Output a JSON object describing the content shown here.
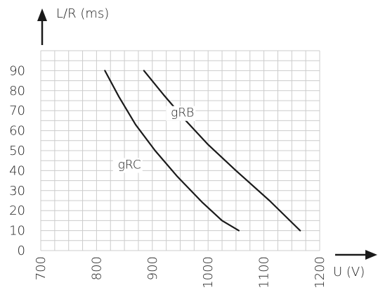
{
  "chart_data": {
    "type": "line",
    "xlabel": "U (V)",
    "ylabel": "L/R (ms)",
    "xlim": [
      700,
      1200
    ],
    "ylim": [
      0,
      90
    ],
    "x_ticks": [
      "700",
      "800",
      "900",
      "1000",
      "1100",
      "1200"
    ],
    "y_ticks": [
      "0",
      "10",
      "20",
      "30",
      "40",
      "50",
      "60",
      "70",
      "80",
      "90"
    ],
    "grid": true,
    "series": [
      {
        "name": "gRC",
        "points": [
          [
            815,
            90
          ],
          [
            840,
            77
          ],
          [
            870,
            63
          ],
          [
            905,
            50
          ],
          [
            945,
            37
          ],
          [
            990,
            24
          ],
          [
            1025,
            15
          ],
          [
            1055,
            10
          ]
        ]
      },
      {
        "name": "gRB",
        "points": [
          [
            885,
            90
          ],
          [
            920,
            78
          ],
          [
            960,
            65
          ],
          [
            1000,
            53
          ],
          [
            1050,
            40
          ],
          [
            1110,
            25
          ],
          [
            1165,
            10
          ]
        ]
      }
    ],
    "colors": {
      "line": "#1a1a1a",
      "grid": "#cccccc"
    }
  }
}
